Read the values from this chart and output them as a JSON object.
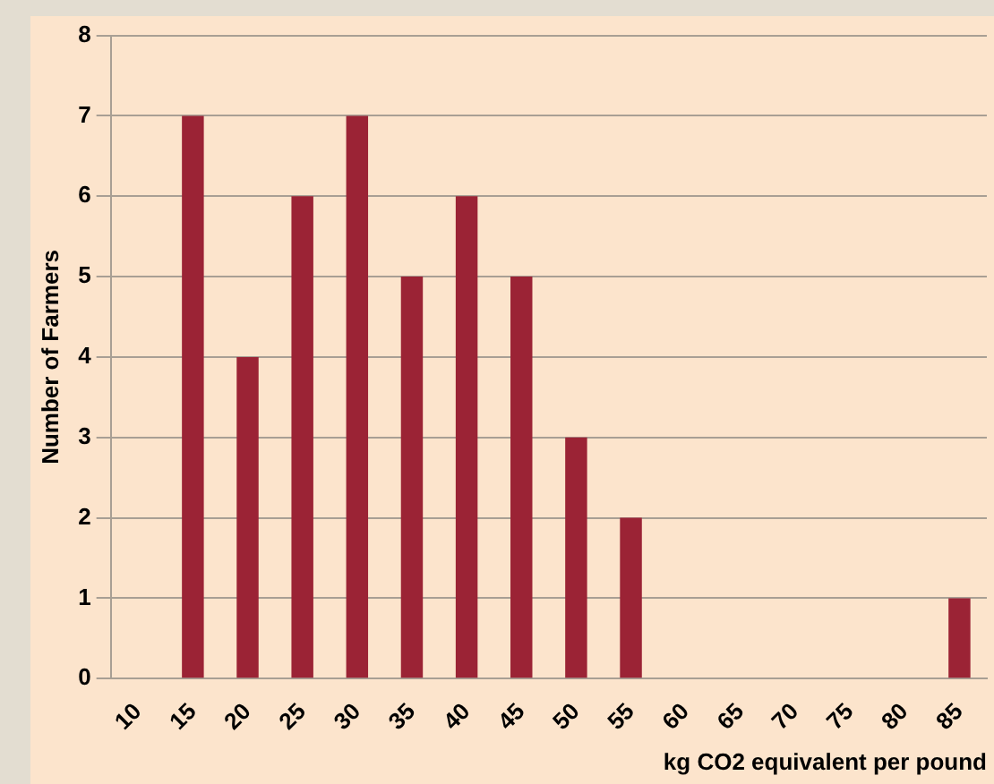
{
  "chart_data": {
    "type": "bar",
    "xlabel": "kg CO2 equivalent per pound",
    "ylabel": "Number of Farmers",
    "categories": [
      "10",
      "15",
      "20",
      "25",
      "30",
      "35",
      "40",
      "45",
      "50",
      "55",
      "60",
      "65",
      "70",
      "75",
      "80",
      "85"
    ],
    "values": [
      0,
      7,
      4,
      6,
      7,
      5,
      6,
      5,
      3,
      2,
      0,
      0,
      0,
      0,
      0,
      1
    ],
    "color": "#9b2335",
    "ylim": [
      0,
      8
    ],
    "yticks": [
      0,
      1,
      2,
      3,
      4,
      5,
      6,
      7,
      8
    ],
    "grid": "y",
    "legend": false
  }
}
